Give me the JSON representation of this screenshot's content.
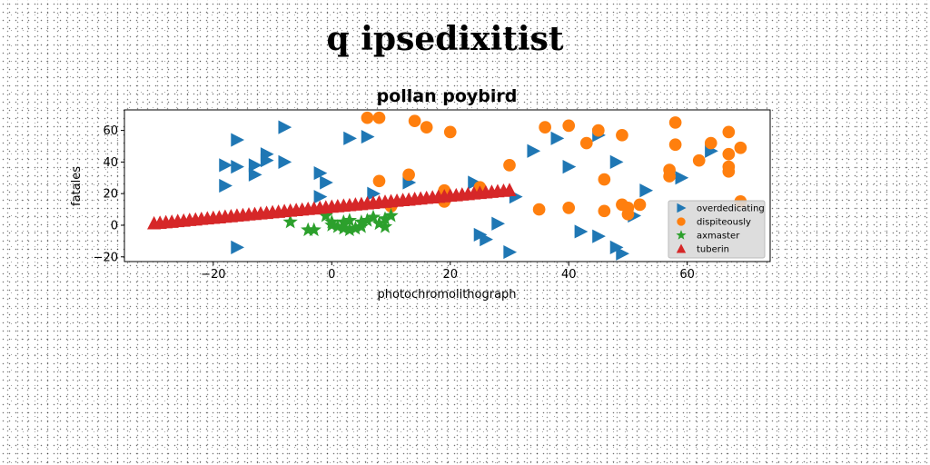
{
  "figure": {
    "suptitle": "q ipsedixitist"
  },
  "colors": {
    "overdedicating": "#1f77b4",
    "dispiteously": "#ff7f0e",
    "axmaster": "#2ca02c",
    "tuberin": "#d62728"
  },
  "chart_data": {
    "type": "scatter",
    "title": "pollan poybird",
    "xlabel": "photochromolithograph",
    "ylabel": "fatales",
    "xlim": [
      -35,
      74
    ],
    "ylim": [
      -23,
      73
    ],
    "xticks": [
      -20,
      0,
      20,
      40,
      60
    ],
    "yticks": [
      -20,
      0,
      20,
      40,
      60
    ],
    "x_tick_labels": [
      "−20",
      "0",
      "20",
      "40",
      "60"
    ],
    "y_tick_labels": [
      "−20",
      "0",
      "20",
      "40",
      "60"
    ],
    "grid": false,
    "legend_position": "lower right",
    "series": [
      {
        "name": "overdedicating",
        "marker": "triangle-right",
        "color": "#1f77b4",
        "points": [
          [
            -16,
            54
          ],
          [
            -18,
            38
          ],
          [
            -16,
            37
          ],
          [
            -18,
            25
          ],
          [
            -13,
            38
          ],
          [
            -13,
            32
          ],
          [
            -11,
            45
          ],
          [
            -11,
            41
          ],
          [
            -8,
            62
          ],
          [
            -8,
            40
          ],
          [
            -2,
            33
          ],
          [
            -1,
            27
          ],
          [
            -2,
            18
          ],
          [
            -16,
            -14
          ],
          [
            3,
            55
          ],
          [
            6,
            56
          ],
          [
            7,
            20
          ],
          [
            13,
            27
          ],
          [
            24,
            27
          ],
          [
            25,
            -6
          ],
          [
            26,
            -9
          ],
          [
            28,
            1
          ],
          [
            30,
            -17
          ],
          [
            31,
            18
          ],
          [
            34,
            47
          ],
          [
            38,
            55
          ],
          [
            40,
            37
          ],
          [
            42,
            -4
          ],
          [
            45,
            57
          ],
          [
            45,
            -7
          ],
          [
            48,
            40
          ],
          [
            48,
            -14
          ],
          [
            49,
            -18
          ],
          [
            51,
            6
          ],
          [
            53,
            22
          ],
          [
            59,
            30
          ],
          [
            64,
            47
          ]
        ]
      },
      {
        "name": "dispiteously",
        "marker": "circle",
        "color": "#ff7f0e",
        "points": [
          [
            6,
            68
          ],
          [
            8,
            68
          ],
          [
            8,
            28
          ],
          [
            10,
            12
          ],
          [
            13,
            32
          ],
          [
            14,
            66
          ],
          [
            16,
            62
          ],
          [
            19,
            22
          ],
          [
            19,
            15
          ],
          [
            20,
            59
          ],
          [
            25,
            24
          ],
          [
            30,
            38
          ],
          [
            35,
            10
          ],
          [
            36,
            62
          ],
          [
            40,
            63
          ],
          [
            40,
            11
          ],
          [
            43,
            52
          ],
          [
            45,
            60
          ],
          [
            46,
            9
          ],
          [
            46,
            29
          ],
          [
            49,
            57
          ],
          [
            49,
            13
          ],
          [
            50,
            7
          ],
          [
            50,
            11
          ],
          [
            52,
            13
          ],
          [
            57,
            35
          ],
          [
            57,
            31
          ],
          [
            58,
            65
          ],
          [
            58,
            51
          ],
          [
            62,
            41
          ],
          [
            64,
            52
          ],
          [
            67,
            59
          ],
          [
            67,
            45
          ],
          [
            67,
            37
          ],
          [
            67,
            34
          ],
          [
            69,
            49
          ],
          [
            69,
            15
          ]
        ]
      },
      {
        "name": "axmaster",
        "marker": "star",
        "color": "#2ca02c",
        "points": [
          [
            -7,
            2
          ],
          [
            -4,
            -3
          ],
          [
            -3,
            -3
          ],
          [
            -1,
            6
          ],
          [
            0,
            2
          ],
          [
            0,
            0
          ],
          [
            1,
            -1
          ],
          [
            2,
            2
          ],
          [
            2,
            -2
          ],
          [
            3,
            3
          ],
          [
            3,
            -3
          ],
          [
            4,
            -2
          ],
          [
            5,
            -1
          ],
          [
            5,
            2
          ],
          [
            6,
            3
          ],
          [
            7,
            5
          ],
          [
            8,
            1
          ],
          [
            9,
            -1
          ],
          [
            9,
            4
          ],
          [
            10,
            6
          ]
        ]
      },
      {
        "name": "tuberin",
        "marker": "triangle-up",
        "color": "#d62728",
        "points": [
          [
            -30,
            1.2
          ],
          [
            -29,
            1.5
          ],
          [
            -28,
            1.9
          ],
          [
            -27,
            2.2
          ],
          [
            -26,
            2.6
          ],
          [
            -25,
            2.9
          ],
          [
            -24,
            3.3
          ],
          [
            -23,
            3.6
          ],
          [
            -22,
            4.0
          ],
          [
            -21,
            4.3
          ],
          [
            -20,
            4.7
          ],
          [
            -19,
            5.0
          ],
          [
            -18,
            5.4
          ],
          [
            -17,
            5.7
          ],
          [
            -16,
            6.1
          ],
          [
            -15,
            6.4
          ],
          [
            -14,
            6.8
          ],
          [
            -13,
            7.1
          ],
          [
            -12,
            7.5
          ],
          [
            -11,
            7.8
          ],
          [
            -10,
            8.2
          ],
          [
            -9,
            8.5
          ],
          [
            -8,
            8.9
          ],
          [
            -7,
            9.2
          ],
          [
            -6,
            9.6
          ],
          [
            -5,
            9.9
          ],
          [
            -4,
            10.3
          ],
          [
            -3,
            10.6
          ],
          [
            -2,
            11.0
          ],
          [
            -1,
            11.3
          ],
          [
            0,
            11.7
          ],
          [
            1,
            12.0
          ],
          [
            2,
            12.4
          ],
          [
            3,
            12.7
          ],
          [
            4,
            13.1
          ],
          [
            5,
            13.4
          ],
          [
            6,
            13.8
          ],
          [
            7,
            14.1
          ],
          [
            8,
            14.5
          ],
          [
            9,
            14.8
          ],
          [
            10,
            15.2
          ],
          [
            11,
            15.5
          ],
          [
            12,
            15.9
          ],
          [
            13,
            16.2
          ],
          [
            14,
            16.6
          ],
          [
            15,
            16.9
          ],
          [
            16,
            17.3
          ],
          [
            17,
            17.6
          ],
          [
            18,
            18.0
          ],
          [
            19,
            18.3
          ],
          [
            20,
            18.7
          ],
          [
            21,
            19.0
          ],
          [
            22,
            19.4
          ],
          [
            23,
            19.7
          ],
          [
            24,
            20.1
          ],
          [
            25,
            20.4
          ],
          [
            26,
            20.8
          ],
          [
            27,
            21.1
          ],
          [
            28,
            21.5
          ],
          [
            29,
            21.8
          ],
          [
            30,
            22.2
          ]
        ]
      }
    ]
  }
}
